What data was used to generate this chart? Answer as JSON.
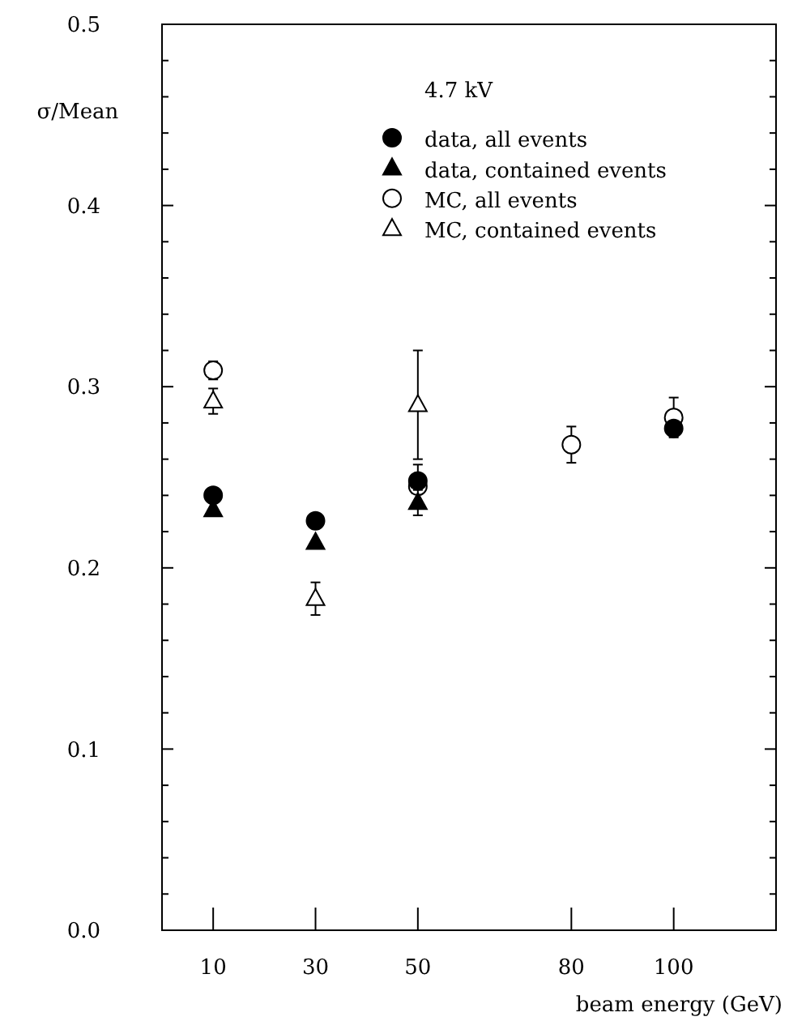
{
  "chart_data": {
    "type": "scatter",
    "xlabel": "beam energy (GeV)",
    "ylabel": "σ/Mean",
    "legend_title": "4.7 kV",
    "legend": "top right",
    "xlim": [
      0,
      120
    ],
    "xticks": [
      10,
      30,
      50,
      80,
      100
    ],
    "ylim": [
      0,
      0.5
    ],
    "yticks": [
      {
        "value": 0,
        "label": "0.0"
      },
      {
        "value": 0.02,
        "label": null
      },
      {
        "value": 0.04,
        "label": null
      },
      {
        "value": 0.06,
        "label": null
      },
      {
        "value": 0.08,
        "label": null
      },
      0.1,
      {
        "value": 0.12,
        "label": null
      },
      {
        "value": 0.14,
        "label": null
      },
      {
        "value": 0.16,
        "label": null
      },
      {
        "value": 0.18,
        "label": null
      },
      0.2,
      {
        "value": 0.22,
        "label": null
      },
      {
        "value": 0.24,
        "label": null
      },
      {
        "value": 0.26,
        "label": null
      },
      {
        "value": 0.28,
        "label": null
      },
      0.3,
      {
        "value": 0.32,
        "label": null
      },
      {
        "value": 0.34,
        "label": null
      },
      {
        "value": 0.36,
        "label": null
      },
      {
        "value": 0.38,
        "label": null
      },
      0.4,
      {
        "value": 0.42,
        "label": null
      },
      {
        "value": 0.44,
        "label": null
      },
      {
        "value": 0.46,
        "label": null
      },
      {
        "value": 0.48,
        "label": null
      },
      0.5
    ],
    "series": [
      {
        "name": "data, all events",
        "color": "#000000",
        "marker": "circle",
        "x": [
          10,
          30,
          50,
          100
        ],
        "values": [
          0.24,
          0.226,
          0.248,
          0.277
        ]
      },
      {
        "name": "data, contained events",
        "color": "#000000",
        "marker": "triangle",
        "x": [
          10,
          30,
          50
        ],
        "values": [
          0.232,
          0.214,
          0.236
        ],
        "errors": [
          null,
          null,
          0.007
        ]
      },
      {
        "name": "MC, all events",
        "color": "#000000",
        "marker": "circle-open",
        "x": [
          10,
          50,
          80,
          100
        ],
        "values": [
          0.309,
          0.245,
          0.268,
          0.283
        ],
        "errors": [
          0.005,
          0.012,
          0.01,
          0.011
        ]
      },
      {
        "name": "MC, contained events",
        "color": "#000000",
        "marker": "triangle-open",
        "x": [
          10,
          30,
          50
        ],
        "values": [
          0.292,
          0.183,
          0.29
        ],
        "errors": [
          0.007,
          0.009,
          0.03
        ]
      }
    ]
  }
}
